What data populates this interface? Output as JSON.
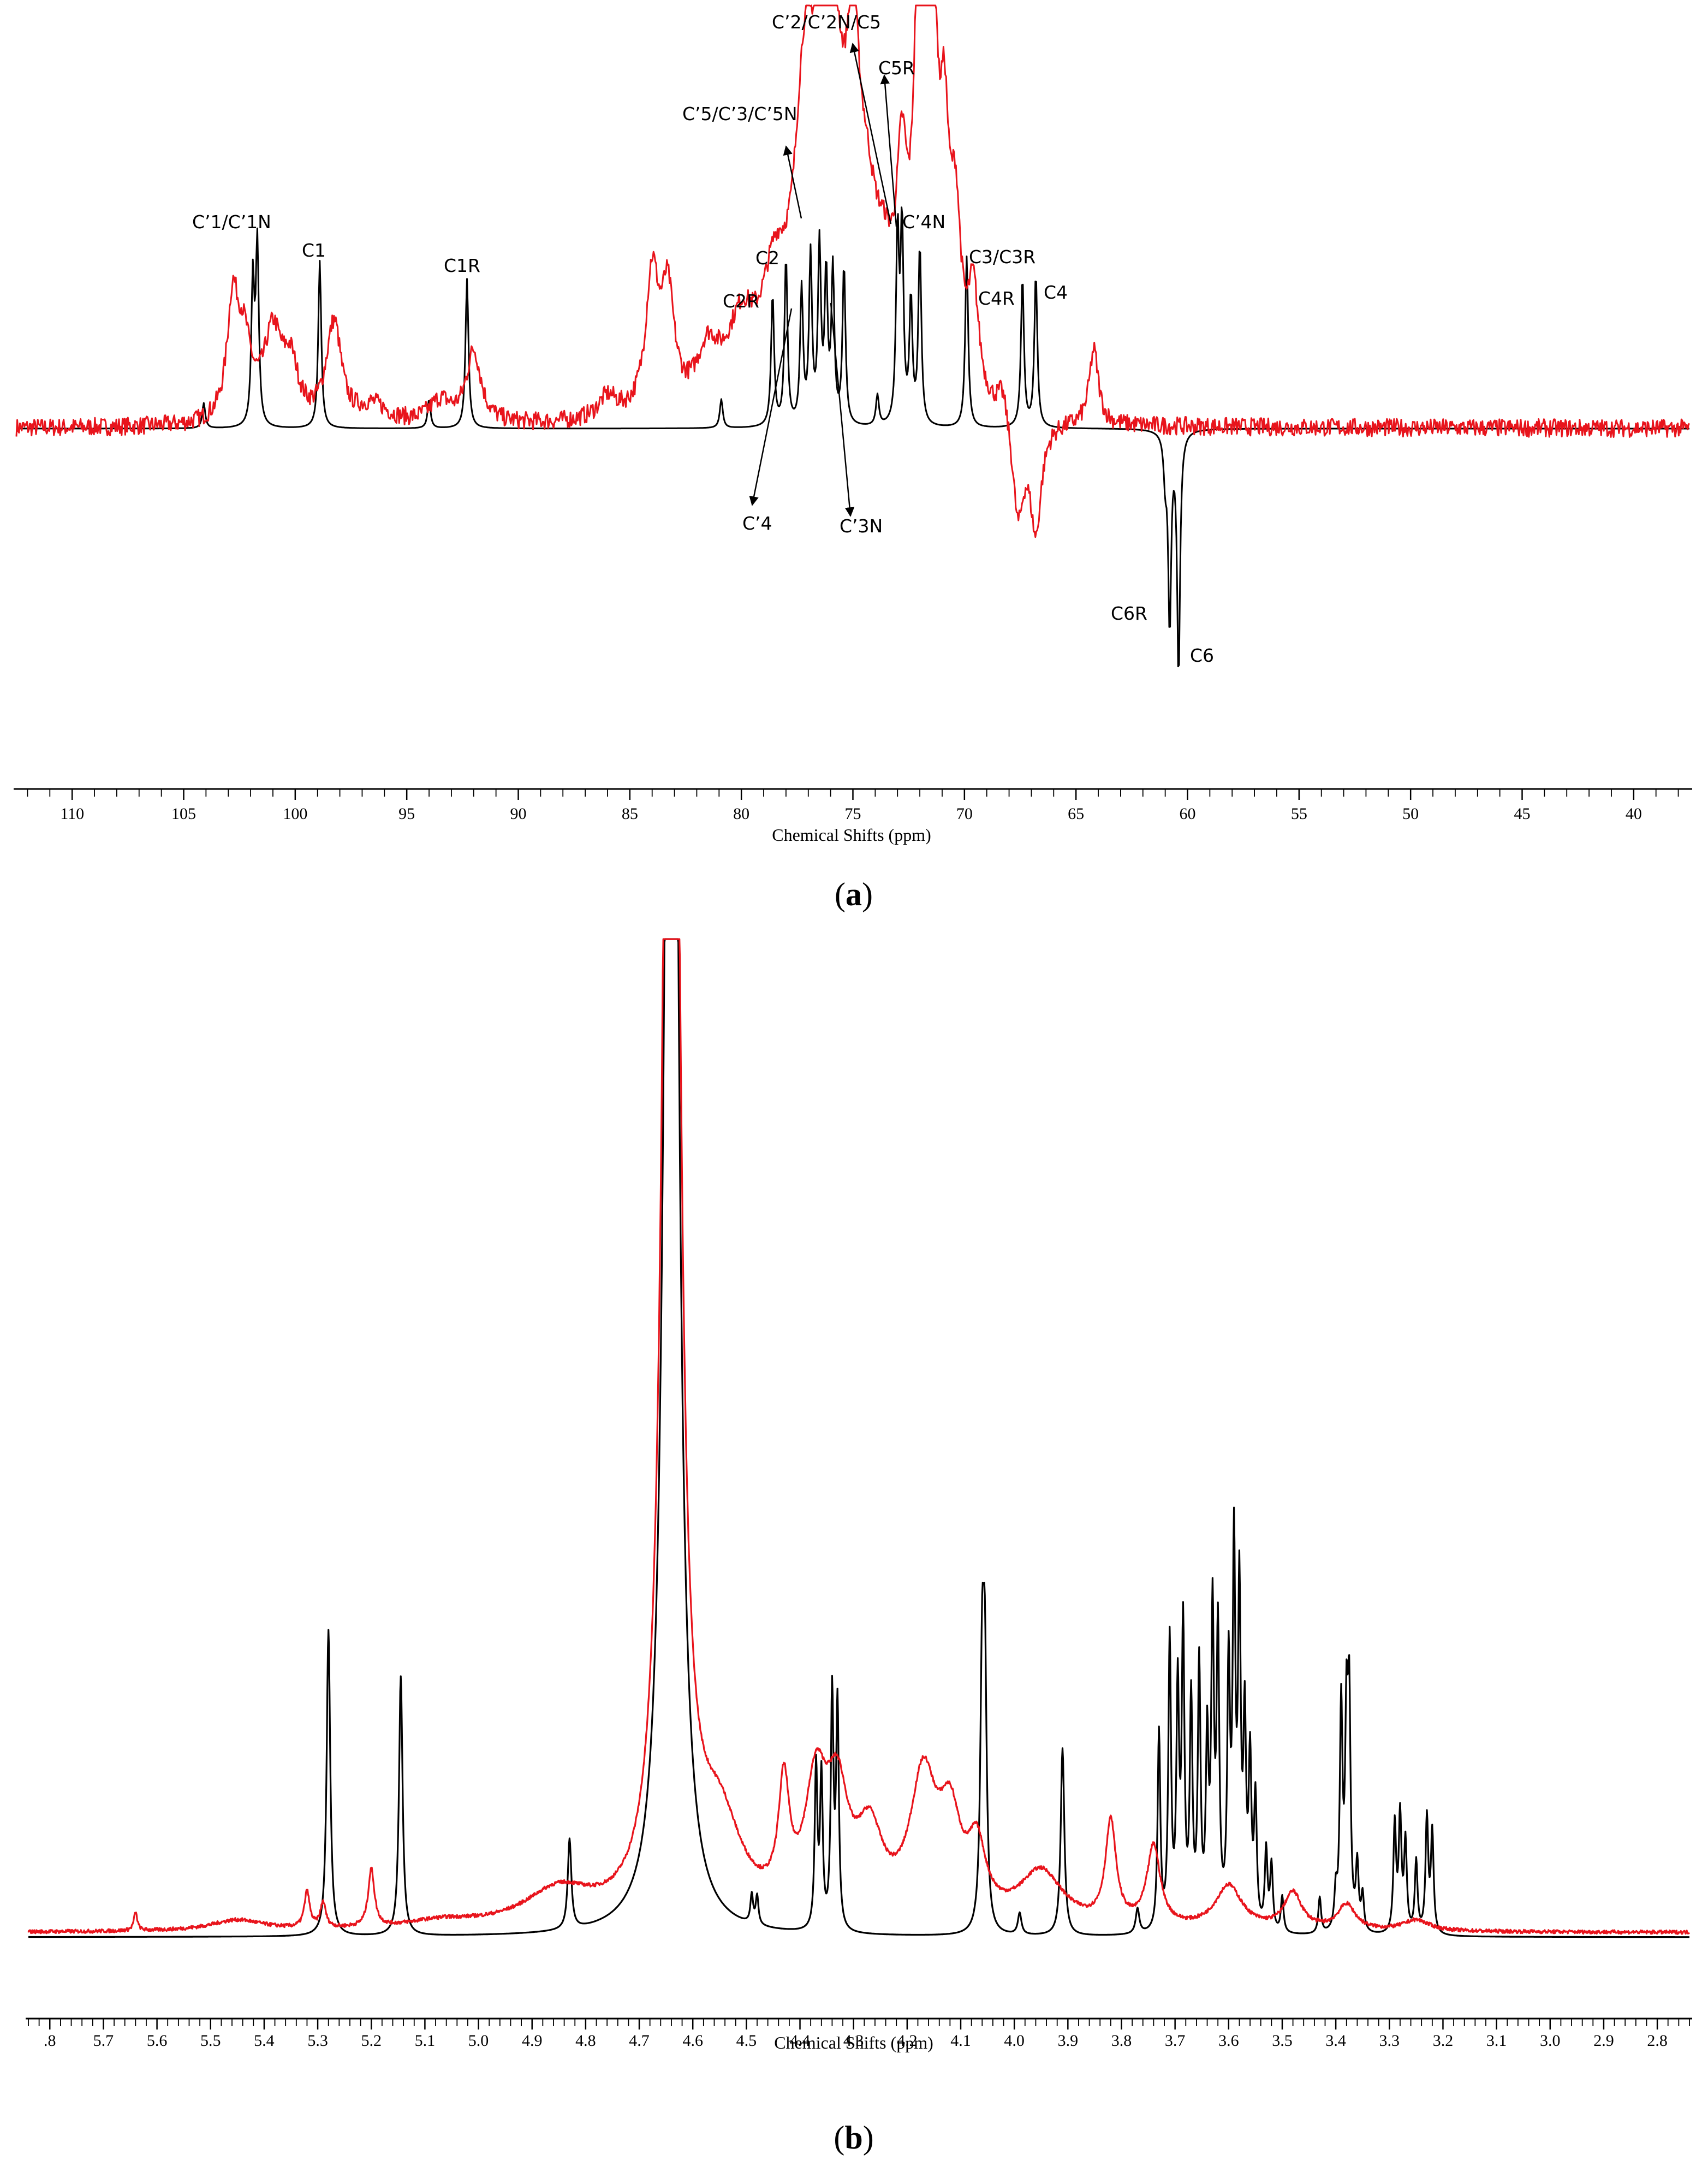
{
  "panel_a": {
    "letter": "a",
    "xlabel": "Chemical Shifts (ppm)",
    "labels": {
      "c1n": "C’1/C’1N",
      "c1": "C1",
      "c1r": "C1R",
      "c2": "C2",
      "c2r": "C2R",
      "c5c3": "C’5/C’3/C’5N",
      "c2n": "C’2/C’2N/C5",
      "c5r": "C5R",
      "c4n": "C’4N",
      "c3": "C3/C3R",
      "c4r": "C4R",
      "c4": "C4",
      "cp4": "C’4",
      "cp3n": "C’3N",
      "c6r": "C6R",
      "c6": "C6"
    }
  },
  "panel_b": {
    "letter": "b",
    "xlabel": "Chemical Shifts (ppm)"
  },
  "colors": {
    "black_trace": "#000000",
    "red_trace": "#e8141c"
  },
  "chart_data": [
    {
      "type": "line",
      "panel": "a",
      "xlabel": "Chemical Shifts (ppm)",
      "ylabel": "",
      "xlim": [
        112.5,
        37.5
      ],
      "x_reversed": true,
      "ticks": [
        "110",
        "105",
        "100",
        "95",
        "90",
        "85",
        "80",
        "75",
        "70",
        "65",
        "60",
        "55",
        "50",
        "45",
        "40"
      ],
      "grid": false,
      "series": [
        {
          "color": "#000000",
          "baseline": 0,
          "peaks": [
            {
              "x": 104.1,
              "h": 0.14,
              "w": 0.08
            },
            {
              "x": 101.9,
              "h": 0.8,
              "w": 0.08
            },
            {
              "x": 101.7,
              "h": 1.0,
              "w": 0.08
            },
            {
              "x": 98.9,
              "h": 0.93,
              "w": 0.08
            },
            {
              "x": 94.0,
              "h": 0.16,
              "w": 0.08
            },
            {
              "x": 92.3,
              "h": 0.83,
              "w": 0.08
            },
            {
              "x": 80.9,
              "h": 0.16,
              "w": 0.08
            },
            {
              "x": 78.6,
              "h": 0.73,
              "w": 0.08
            },
            {
              "x": 78.0,
              "h": 0.93,
              "w": 0.08
            },
            {
              "x": 77.3,
              "h": 0.75,
              "w": 0.08
            },
            {
              "x": 76.9,
              "h": 0.93,
              "w": 0.08
            },
            {
              "x": 76.5,
              "h": 0.98,
              "w": 0.08
            },
            {
              "x": 76.2,
              "h": 0.82,
              "w": 0.08
            },
            {
              "x": 75.9,
              "h": 0.85,
              "w": 0.08
            },
            {
              "x": 75.4,
              "h": 0.88,
              "w": 0.08
            },
            {
              "x": 73.9,
              "h": 0.17,
              "w": 0.08
            },
            {
              "x": 73.0,
              "h": 1.05,
              "w": 0.08
            },
            {
              "x": 72.8,
              "h": 1.08,
              "w": 0.08
            },
            {
              "x": 72.4,
              "h": 0.68,
              "w": 0.08
            },
            {
              "x": 72.0,
              "h": 0.99,
              "w": 0.08
            },
            {
              "x": 69.9,
              "h": 0.95,
              "w": 0.08
            },
            {
              "x": 67.4,
              "h": 0.83,
              "w": 0.08
            },
            {
              "x": 66.8,
              "h": 0.85,
              "w": 0.08
            },
            {
              "x": 61.0,
              "h": -0.23,
              "w": 0.08
            },
            {
              "x": 60.8,
              "h": -1.08,
              "w": 0.08
            },
            {
              "x": 60.4,
              "h": -1.35,
              "w": 0.08
            }
          ]
        },
        {
          "color": "#e8141c",
          "baseline": 0,
          "noise": 0.05,
          "peaks": [
            {
              "x": 102.8,
              "h": 0.62,
              "w": 0.3
            },
            {
              "x": 102.3,
              "h": 0.4,
              "w": 0.4
            },
            {
              "x": 101.0,
              "h": 0.48,
              "w": 0.5
            },
            {
              "x": 100.2,
              "h": 0.28,
              "w": 0.4
            },
            {
              "x": 98.4,
              "h": 0.22,
              "w": 0.4
            },
            {
              "x": 98.2,
              "h": 0.36,
              "w": 0.35
            },
            {
              "x": 96.5,
              "h": 0.1,
              "w": 0.8
            },
            {
              "x": 93.5,
              "h": 0.12,
              "w": 0.6
            },
            {
              "x": 92.0,
              "h": 0.4,
              "w": 0.4
            },
            {
              "x": 86.0,
              "h": 0.12,
              "w": 0.5
            },
            {
              "x": 84.0,
              "h": 0.75,
              "w": 0.35
            },
            {
              "x": 83.3,
              "h": 0.62,
              "w": 0.35
            },
            {
              "x": 81.5,
              "h": 0.3,
              "w": 0.6
            },
            {
              "x": 80.0,
              "h": 0.42,
              "w": 0.8
            },
            {
              "x": 78.5,
              "h": 0.55,
              "w": 0.7
            },
            {
              "x": 77.2,
              "h": 1.05,
              "w": 0.5
            },
            {
              "x": 76.5,
              "h": 1.42,
              "w": 0.8
            },
            {
              "x": 75.8,
              "h": 1.1,
              "w": 0.5
            },
            {
              "x": 75.0,
              "h": 1.35,
              "w": 0.35
            },
            {
              "x": 74.4,
              "h": 0.72,
              "w": 0.6
            },
            {
              "x": 73.6,
              "h": 0.45,
              "w": 0.6
            },
            {
              "x": 72.8,
              "h": 1.0,
              "w": 0.3
            },
            {
              "x": 72.1,
              "h": 1.6,
              "w": 0.25
            },
            {
              "x": 71.7,
              "h": 1.45,
              "w": 0.25
            },
            {
              "x": 71.4,
              "h": 1.6,
              "w": 0.25
            },
            {
              "x": 70.9,
              "h": 1.15,
              "w": 0.25
            },
            {
              "x": 70.4,
              "h": 0.9,
              "w": 0.3
            },
            {
              "x": 69.6,
              "h": 0.6,
              "w": 0.3
            },
            {
              "x": 68.3,
              "h": 0.18,
              "w": 0.3
            },
            {
              "x": 67.6,
              "h": -0.55,
              "w": 0.3
            },
            {
              "x": 66.8,
              "h": -0.6,
              "w": 0.3
            },
            {
              "x": 64.2,
              "h": 0.42,
              "w": 0.25
            }
          ]
        }
      ]
    },
    {
      "type": "line",
      "panel": "b",
      "xlabel": "Chemical Shifts (ppm)",
      "ylabel": "",
      "xlim": [
        5.84,
        2.74
      ],
      "x_reversed": true,
      "ticks": [
        ".8",
        "5.7",
        "5.6",
        "5.5",
        "5.4",
        "5.3",
        "5.2",
        "5.1",
        "5.0",
        "4.9",
        "4.8",
        "4.7",
        "4.6",
        "4.5",
        "4.4",
        "4.3",
        "4.2",
        "4.1",
        "4.0",
        "3.9",
        "3.8",
        "3.7",
        "3.6",
        "3.5",
        "3.4",
        "3.3",
        "3.2",
        "3.1",
        "3.0",
        "2.9",
        "2.8"
      ],
      "grid": false,
      "series": [
        {
          "color": "#000000",
          "baseline": 0,
          "peaks": [
            {
              "x": 5.28,
              "h": 0.85,
              "w": 0.004
            },
            {
              "x": 5.145,
              "h": 0.72,
              "w": 0.004
            },
            {
              "x": 4.83,
              "h": 0.25,
              "w": 0.004
            },
            {
              "x": 4.64,
              "h": 6.0,
              "w": 0.012
            },
            {
              "x": 4.49,
              "h": 0.08,
              "w": 0.003
            },
            {
              "x": 4.48,
              "h": 0.08,
              "w": 0.003
            },
            {
              "x": 4.37,
              "h": 0.45,
              "w": 0.003
            },
            {
              "x": 4.36,
              "h": 0.42,
              "w": 0.003
            },
            {
              "x": 4.34,
              "h": 0.65,
              "w": 0.003
            },
            {
              "x": 4.33,
              "h": 0.62,
              "w": 0.003
            },
            {
              "x": 4.06,
              "h": 0.68,
              "w": 0.004
            },
            {
              "x": 4.055,
              "h": 0.68,
              "w": 0.004
            },
            {
              "x": 3.99,
              "h": 0.06,
              "w": 0.004
            },
            {
              "x": 3.91,
              "h": 0.52,
              "w": 0.004
            },
            {
              "x": 3.77,
              "h": 0.07,
              "w": 0.004
            },
            {
              "x": 3.73,
              "h": 0.55,
              "w": 0.003
            },
            {
              "x": 3.71,
              "h": 0.8,
              "w": 0.003
            },
            {
              "x": 3.695,
              "h": 0.65,
              "w": 0.003
            },
            {
              "x": 3.685,
              "h": 0.82,
              "w": 0.003
            },
            {
              "x": 3.67,
              "h": 0.62,
              "w": 0.003
            },
            {
              "x": 3.655,
              "h": 0.72,
              "w": 0.003
            },
            {
              "x": 3.64,
              "h": 0.5,
              "w": 0.003
            },
            {
              "x": 3.63,
              "h": 0.85,
              "w": 0.003
            },
            {
              "x": 3.62,
              "h": 0.8,
              "w": 0.003
            },
            {
              "x": 3.6,
              "h": 0.7,
              "w": 0.003
            },
            {
              "x": 3.59,
              "h": 1.02,
              "w": 0.003
            },
            {
              "x": 3.58,
              "h": 0.9,
              "w": 0.003
            },
            {
              "x": 3.57,
              "h": 0.55,
              "w": 0.003
            },
            {
              "x": 3.56,
              "h": 0.45,
              "w": 0.003
            },
            {
              "x": 3.55,
              "h": 0.35,
              "w": 0.003
            },
            {
              "x": 3.53,
              "h": 0.22,
              "w": 0.003
            },
            {
              "x": 3.52,
              "h": 0.18,
              "w": 0.003
            },
            {
              "x": 3.5,
              "h": 0.1,
              "w": 0.003
            },
            {
              "x": 3.43,
              "h": 0.1,
              "w": 0.003
            },
            {
              "x": 3.4,
              "h": 0.1,
              "w": 0.003
            },
            {
              "x": 3.39,
              "h": 0.62,
              "w": 0.003
            },
            {
              "x": 3.38,
              "h": 0.55,
              "w": 0.003
            },
            {
              "x": 3.375,
              "h": 0.6,
              "w": 0.003
            },
            {
              "x": 3.36,
              "h": 0.18,
              "w": 0.003
            },
            {
              "x": 3.35,
              "h": 0.1,
              "w": 0.003
            },
            {
              "x": 3.29,
              "h": 0.3,
              "w": 0.003
            },
            {
              "x": 3.28,
              "h": 0.32,
              "w": 0.003
            },
            {
              "x": 3.27,
              "h": 0.25,
              "w": 0.003
            },
            {
              "x": 3.25,
              "h": 0.2,
              "w": 0.003
            },
            {
              "x": 3.23,
              "h": 0.32,
              "w": 0.003
            },
            {
              "x": 3.22,
              "h": 0.28,
              "w": 0.003
            }
          ]
        },
        {
          "color": "#e8141c",
          "baseline": 0.012,
          "noise": 0.005,
          "peaks": [
            {
              "x": 5.64,
              "h": 0.05,
              "w": 0.004
            },
            {
              "x": 5.45,
              "h": 0.03,
              "w": 0.06
            },
            {
              "x": 5.32,
              "h": 0.1,
              "w": 0.006
            },
            {
              "x": 5.29,
              "h": 0.07,
              "w": 0.006
            },
            {
              "x": 5.2,
              "h": 0.16,
              "w": 0.007
            },
            {
              "x": 5.07,
              "h": 0.02,
              "w": 0.08
            },
            {
              "x": 4.85,
              "h": 0.1,
              "w": 0.08
            },
            {
              "x": 4.64,
              "h": 6.0,
              "w": 0.014
            },
            {
              "x": 4.55,
              "h": 0.25,
              "w": 0.05
            },
            {
              "x": 4.43,
              "h": 0.32,
              "w": 0.012
            },
            {
              "x": 4.37,
              "h": 0.34,
              "w": 0.025
            },
            {
              "x": 4.33,
              "h": 0.3,
              "w": 0.025
            },
            {
              "x": 4.27,
              "h": 0.22,
              "w": 0.03
            },
            {
              "x": 4.17,
              "h": 0.38,
              "w": 0.03
            },
            {
              "x": 4.12,
              "h": 0.25,
              "w": 0.025
            },
            {
              "x": 4.07,
              "h": 0.18,
              "w": 0.02
            },
            {
              "x": 3.95,
              "h": 0.15,
              "w": 0.05
            },
            {
              "x": 3.82,
              "h": 0.28,
              "w": 0.012
            },
            {
              "x": 3.74,
              "h": 0.22,
              "w": 0.015
            },
            {
              "x": 3.6,
              "h": 0.12,
              "w": 0.03
            },
            {
              "x": 3.48,
              "h": 0.1,
              "w": 0.02
            },
            {
              "x": 3.38,
              "h": 0.07,
              "w": 0.02
            },
            {
              "x": 3.25,
              "h": 0.03,
              "w": 0.03
            }
          ]
        }
      ]
    }
  ]
}
